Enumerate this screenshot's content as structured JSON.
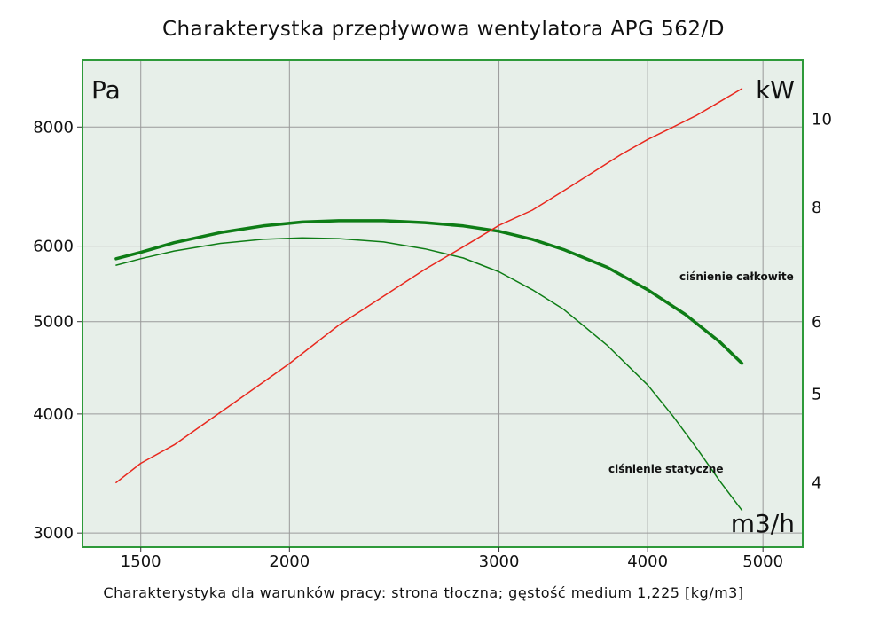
{
  "title": "Charakterystka przepływowa wentylatora APG 562/D",
  "footnote": "Charakterystyka dla warunków pracy: strona tłoczna; gęstość medium 1,225 [kg/m3]",
  "colors": {
    "plot_bg": "#e7efe9",
    "frame": "#2e9a3a",
    "grid": "#9a9a9a",
    "pressure": "#0e7d16",
    "power": "#e8281e"
  },
  "chart_data": {
    "type": "line",
    "title": "Charakterystka przepływowa wentylatora APG 562/D",
    "xlabel": "m3/h",
    "ylabel_left": "Pa",
    "ylabel_right": "kW",
    "x_scale": "log",
    "y_scale": "log",
    "xlim": [
      1340,
      5400
    ],
    "ylim_left": [
      2900,
      9400
    ],
    "ylim_right": [
      3.4,
      11.6
    ],
    "x_ticks": [
      1500,
      2000,
      3000,
      4000,
      5000
    ],
    "y_ticks_left": [
      3000,
      4000,
      5000,
      6000,
      8000
    ],
    "y_ticks_right": [
      4,
      5,
      6,
      8,
      10
    ],
    "grid": true,
    "series": [
      {
        "name": "ciśnienie całkowite",
        "label": "ciśnienie całkowite",
        "axis": "left",
        "emphasis": "bold",
        "x": [
          1430,
          1500,
          1600,
          1750,
          1900,
          2050,
          2200,
          2400,
          2600,
          2800,
          3000,
          3200,
          3400,
          3700,
          4000,
          4300,
          4600,
          4800
        ],
        "y": [
          5820,
          5910,
          6050,
          6200,
          6300,
          6360,
          6380,
          6380,
          6350,
          6300,
          6220,
          6100,
          5950,
          5700,
          5400,
          5090,
          4760,
          4520
        ]
      },
      {
        "name": "ciśnienie statyczne",
        "label": "ciśnienie statyczne",
        "axis": "left",
        "emphasis": "normal",
        "x": [
          1430,
          1500,
          1600,
          1750,
          1900,
          2050,
          2200,
          2400,
          2600,
          2800,
          3000,
          3200,
          3400,
          3700,
          4000,
          4200,
          4400,
          4600,
          4800
        ],
        "y": [
          5730,
          5820,
          5930,
          6040,
          6100,
          6120,
          6110,
          6060,
          5960,
          5830,
          5640,
          5400,
          5150,
          4720,
          4290,
          3980,
          3680,
          3400,
          3170
        ]
      },
      {
        "name": "moc",
        "label": "",
        "axis": "right",
        "emphasis": "normal",
        "x": [
          1430,
          1500,
          1600,
          1700,
          1800,
          1900,
          2000,
          2200,
          2400,
          2600,
          2800,
          3000,
          3200,
          3400,
          3600,
          3800,
          4000,
          4200,
          4400,
          4600,
          4800
        ],
        "y": [
          4.0,
          4.2,
          4.4,
          4.65,
          4.9,
          5.15,
          5.4,
          5.95,
          6.4,
          6.85,
          7.25,
          7.65,
          7.95,
          8.35,
          8.75,
          9.15,
          9.5,
          9.8,
          10.1,
          10.45,
          10.8
        ]
      }
    ]
  }
}
